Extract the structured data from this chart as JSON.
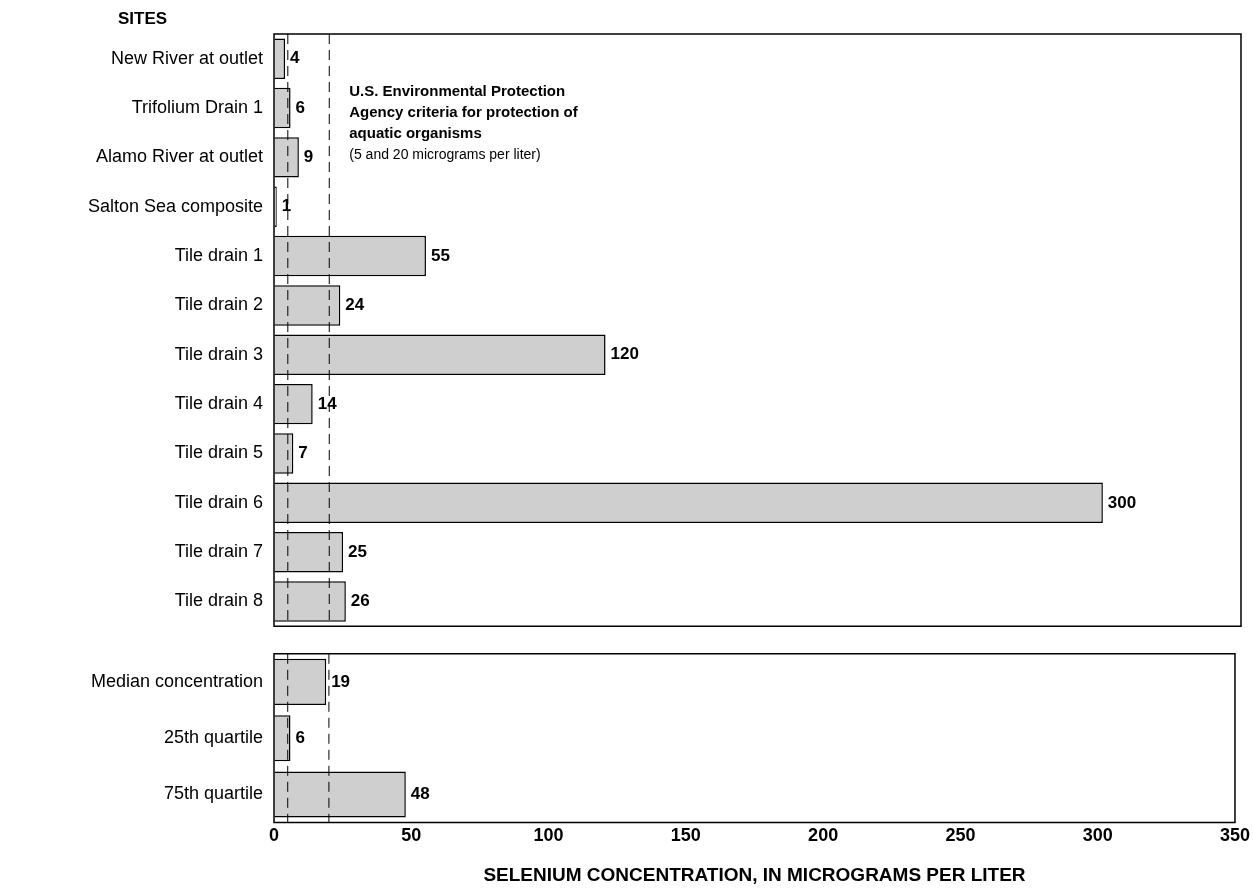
{
  "chart_data": [
    {
      "type": "bar",
      "orientation": "horizontal",
      "ylabel": "SITES",
      "categories": [
        "New River at outlet",
        "Trifolium Drain 1",
        "Alamo River at outlet",
        "Salton Sea composite",
        "Tile drain 1",
        "Tile drain 2",
        "Tile drain 3",
        "Tile drain 4",
        "Tile drain 5",
        "Tile drain 6",
        "Tile drain 7",
        "Tile drain 8"
      ],
      "values": [
        4,
        6,
        9,
        1,
        55,
        24,
        120,
        14,
        7,
        300,
        25,
        26
      ],
      "color": "#cfcfcf",
      "data_labels": true,
      "xlim": [
        0,
        350
      ],
      "xticks": [
        0,
        50,
        100,
        150,
        200,
        250,
        300,
        350
      ],
      "tick_labels": "y",
      "grid": false,
      "legend": false,
      "ref_lines": [
        {
          "axis": "x",
          "value": 5,
          "line_style": "dashed",
          "color": "#000000"
        },
        {
          "axis": "x",
          "value": 20,
          "line_style": "dashed",
          "color": "#000000"
        }
      ],
      "annotations": [
        "U.S. Environmental Protection Agency criteria for protection of aquatic organisms",
        "(5 and 20 micrograms per liter)"
      ]
    },
    {
      "type": "bar",
      "orientation": "horizontal",
      "xlabel": "SELENIUM CONCENTRATION, IN MICROGRAMS PER LITER",
      "categories": [
        "Median concentration",
        "25th quartile",
        "75th quartile"
      ],
      "values": [
        19,
        6,
        48
      ],
      "color": "#cfcfcf",
      "data_labels": true,
      "xlim": [
        0,
        350
      ],
      "xticks": [
        0,
        50,
        100,
        150,
        200,
        250,
        300,
        350
      ],
      "grid": false,
      "legend": false,
      "ref_lines": [
        {
          "axis": "x",
          "value": 5,
          "line_style": "dashed",
          "color": "#000000"
        },
        {
          "axis": "x",
          "value": 20,
          "line_style": "dashed",
          "color": "#000000"
        }
      ]
    }
  ]
}
